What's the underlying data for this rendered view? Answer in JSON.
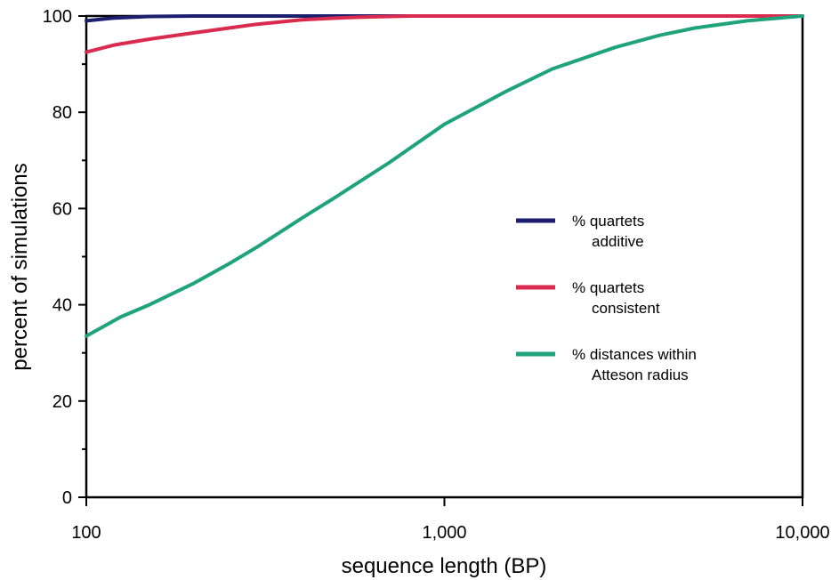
{
  "chart_data": {
    "type": "line",
    "title": "",
    "xlabel": "sequence length (BP)",
    "ylabel": "percent of simulations",
    "xscale": "log",
    "xlim": [
      100,
      10000
    ],
    "ylim": [
      0,
      100
    ],
    "x_ticks": [
      100,
      1000,
      10000
    ],
    "x_tick_labels": [
      "100",
      "1,000",
      "10,000"
    ],
    "y_ticks": [
      0,
      20,
      40,
      60,
      80,
      100
    ],
    "y_tick_labels": [
      "0",
      "20",
      "40",
      "60",
      "80",
      "100"
    ],
    "grid": false,
    "legend_position": "center-right",
    "series": [
      {
        "name": "% quartets additive",
        "legend_lines": [
          "% quartets",
          "additive"
        ],
        "color": "#1c1f6e",
        "x": [
          100,
          120,
          150,
          200,
          300,
          400,
          600,
          1000,
          3000,
          10000
        ],
        "y": [
          99.0,
          99.6,
          99.9,
          100,
          100,
          100,
          100,
          100,
          100,
          100
        ]
      },
      {
        "name": "% quartets consistent",
        "legend_lines": [
          "% quartets",
          "consistent"
        ],
        "color": "#d92a4f",
        "x": [
          100,
          120,
          150,
          200,
          250,
          300,
          400,
          500,
          600,
          800,
          1000,
          3000,
          10000
        ],
        "y": [
          92.5,
          94.0,
          95.2,
          96.5,
          97.5,
          98.3,
          99.2,
          99.6,
          99.8,
          100,
          100,
          100,
          100
        ]
      },
      {
        "name": "% distances within Atteson radius",
        "legend_lines": [
          "% distances within",
          "Atteson radius"
        ],
        "color": "#1ea37a",
        "x": [
          100,
          125,
          150,
          200,
          250,
          300,
          400,
          500,
          700,
          1000,
          1500,
          2000,
          3000,
          4000,
          5000,
          7000,
          10000
        ],
        "y": [
          33.5,
          37.5,
          40.0,
          44.5,
          48.5,
          52.0,
          58.0,
          62.5,
          69.5,
          77.5,
          84.5,
          89.0,
          93.5,
          96.0,
          97.5,
          99.0,
          100
        ]
      }
    ]
  }
}
